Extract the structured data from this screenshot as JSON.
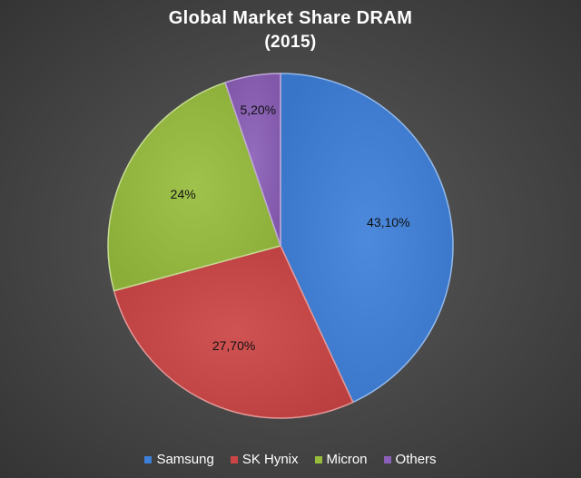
{
  "chart_data": {
    "type": "pie",
    "title": "Global Market Share DRAM",
    "subtitle": "(2015)",
    "categories": [
      "Samsung",
      "SK Hynix",
      "Micron",
      "Others"
    ],
    "values": [
      43.1,
      27.7,
      24,
      5.2
    ],
    "data_labels": [
      "43,10%",
      "27,70%",
      "24%",
      "5,20%"
    ],
    "colors": [
      "#3d7fd9",
      "#cc4444",
      "#97bd3d",
      "#8b5fb8"
    ],
    "legend_position": "bottom",
    "start_angle": "top, clockwise"
  }
}
